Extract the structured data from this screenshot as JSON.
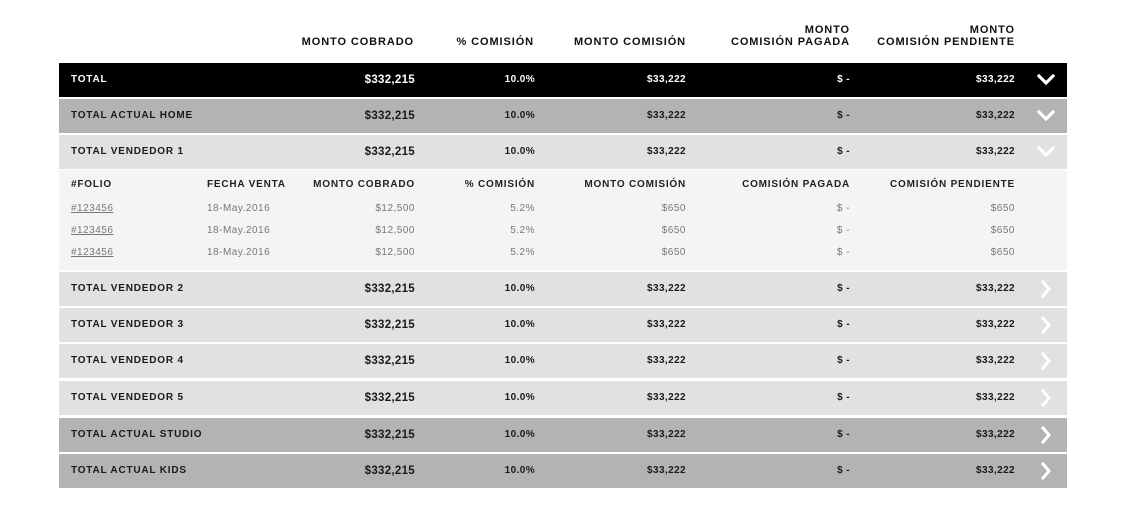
{
  "header": {
    "monto_cobrado": "MONTO COBRADO",
    "pct_comision": "% COMISIÓN",
    "monto_comision": "MONTO COMISIÓN",
    "comision_pagada_l1": "MONTO",
    "comision_pagada_l2": "COMISIÓN PAGADA",
    "comision_pendiente_l1": "MONTO",
    "comision_pendiente_l2": "COMISIÓN PENDIENTE"
  },
  "colors": {
    "total_bg": "#000000",
    "dark_gray": "#b3b3b3",
    "light_gray": "#e1e1e1",
    "detail_bg": "#f4f4f4"
  },
  "rows": [
    {
      "label": "TOTAL",
      "cobrado": "$332,215",
      "pct": "10.0%",
      "comision": "$33,222",
      "pagada": "$ -",
      "pendiente": "$33,222",
      "icon": "chevron-down-icon"
    },
    {
      "label": "TOTAL ACTUAL HOME",
      "cobrado": "$332,215",
      "pct": "10.0%",
      "comision": "$33,222",
      "pagada": "$ -",
      "pendiente": "$33,222",
      "icon": "chevron-down-icon"
    },
    {
      "label": "TOTAL VENDEDOR 1",
      "cobrado": "$332,215",
      "pct": "10.0%",
      "comision": "$33,222",
      "pagada": "$ -",
      "pendiente": "$33,222",
      "icon": "chevron-down-icon"
    },
    {
      "label": "TOTAL VENDEDOR 2",
      "cobrado": "$332,215",
      "pct": "10.0%",
      "comision": "$33,222",
      "pagada": "$ -",
      "pendiente": "$33,222",
      "icon": "chevron-right-icon"
    },
    {
      "label": "TOTAL VENDEDOR 3",
      "cobrado": "$332,215",
      "pct": "10.0%",
      "comision": "$33,222",
      "pagada": "$ -",
      "pendiente": "$33,222",
      "icon": "chevron-right-icon"
    },
    {
      "label": "TOTAL VENDEDOR 4",
      "cobrado": "$332,215",
      "pct": "10.0%",
      "comision": "$33,222",
      "pagada": "$ -",
      "pendiente": "$33,222",
      "icon": "chevron-right-icon"
    },
    {
      "label": "TOTAL VENDEDOR 5",
      "cobrado": "$332,215",
      "pct": "10.0%",
      "comision": "$33,222",
      "pagada": "$ -",
      "pendiente": "$33,222",
      "icon": "chevron-right-icon"
    },
    {
      "label": "TOTAL ACTUAL STUDIO",
      "cobrado": "$332,215",
      "pct": "10.0%",
      "comision": "$33,222",
      "pagada": "$ -",
      "pendiente": "$33,222",
      "icon": "chevron-right-icon"
    },
    {
      "label": "TOTAL ACTUAL KIDS",
      "cobrado": "$332,215",
      "pct": "10.0%",
      "comision": "$33,222",
      "pagada": "$ -",
      "pendiente": "$33,222",
      "icon": "chevron-right-icon"
    }
  ],
  "detail": {
    "headers": {
      "folio": "#FOLIO",
      "fecha": "FECHA VENTA",
      "cobrado": "MONTO COBRADO",
      "pct": "% COMISIÓN",
      "comision": "MONTO COMISIÓN",
      "pagada": "COMISIÓN PAGADA",
      "pendiente": "COMISIÓN PENDIENTE"
    },
    "rows": [
      {
        "folio": "#123456",
        "fecha": "18-May.2016",
        "cobrado": "$12,500",
        "pct": "5.2%",
        "comision": "$650",
        "pagada": "$ -",
        "pendiente": "$650"
      },
      {
        "folio": "#123456",
        "fecha": "18-May.2016",
        "cobrado": "$12,500",
        "pct": "5.2%",
        "comision": "$650",
        "pagada": "$ -",
        "pendiente": "$650"
      },
      {
        "folio": "#123456",
        "fecha": "18-May.2016",
        "cobrado": "$12,500",
        "pct": "5.2%",
        "comision": "$650",
        "pagada": "$ -",
        "pendiente": "$650"
      }
    ]
  }
}
